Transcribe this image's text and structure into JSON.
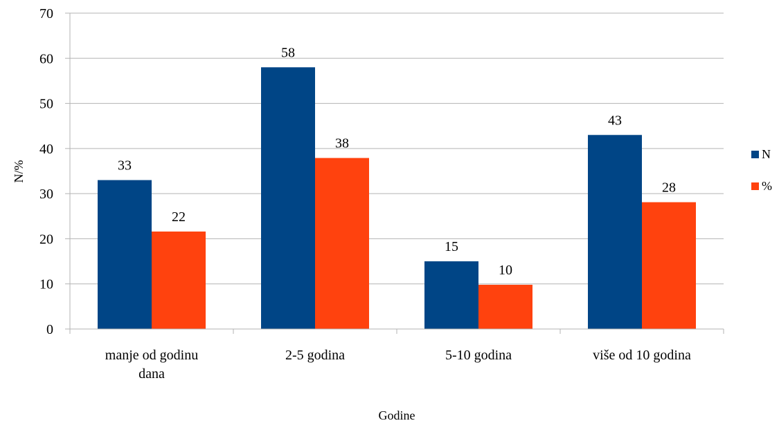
{
  "chart_data": {
    "type": "bar",
    "title": "",
    "xlabel": "Godine",
    "ylabel": "N/%",
    "ylim": [
      0,
      70
    ],
    "yticks": [
      0,
      10,
      20,
      30,
      40,
      50,
      60,
      70
    ],
    "grid": true,
    "legend_position": "right",
    "categories": [
      [
        "manje od godinu",
        "dana"
      ],
      [
        "2-5 godina"
      ],
      [
        "5-10 godina"
      ],
      [
        "više od 10 godina"
      ]
    ],
    "series": [
      {
        "name": "N",
        "color": "#004586",
        "values": [
          33,
          58,
          15,
          43
        ],
        "labels": [
          "33",
          "58",
          "15",
          "43"
        ]
      },
      {
        "name": "%",
        "color": "#ff420e",
        "values": [
          21.6,
          37.9,
          9.8,
          28.1
        ],
        "labels": [
          "22",
          "38",
          "10",
          "28"
        ]
      }
    ]
  }
}
